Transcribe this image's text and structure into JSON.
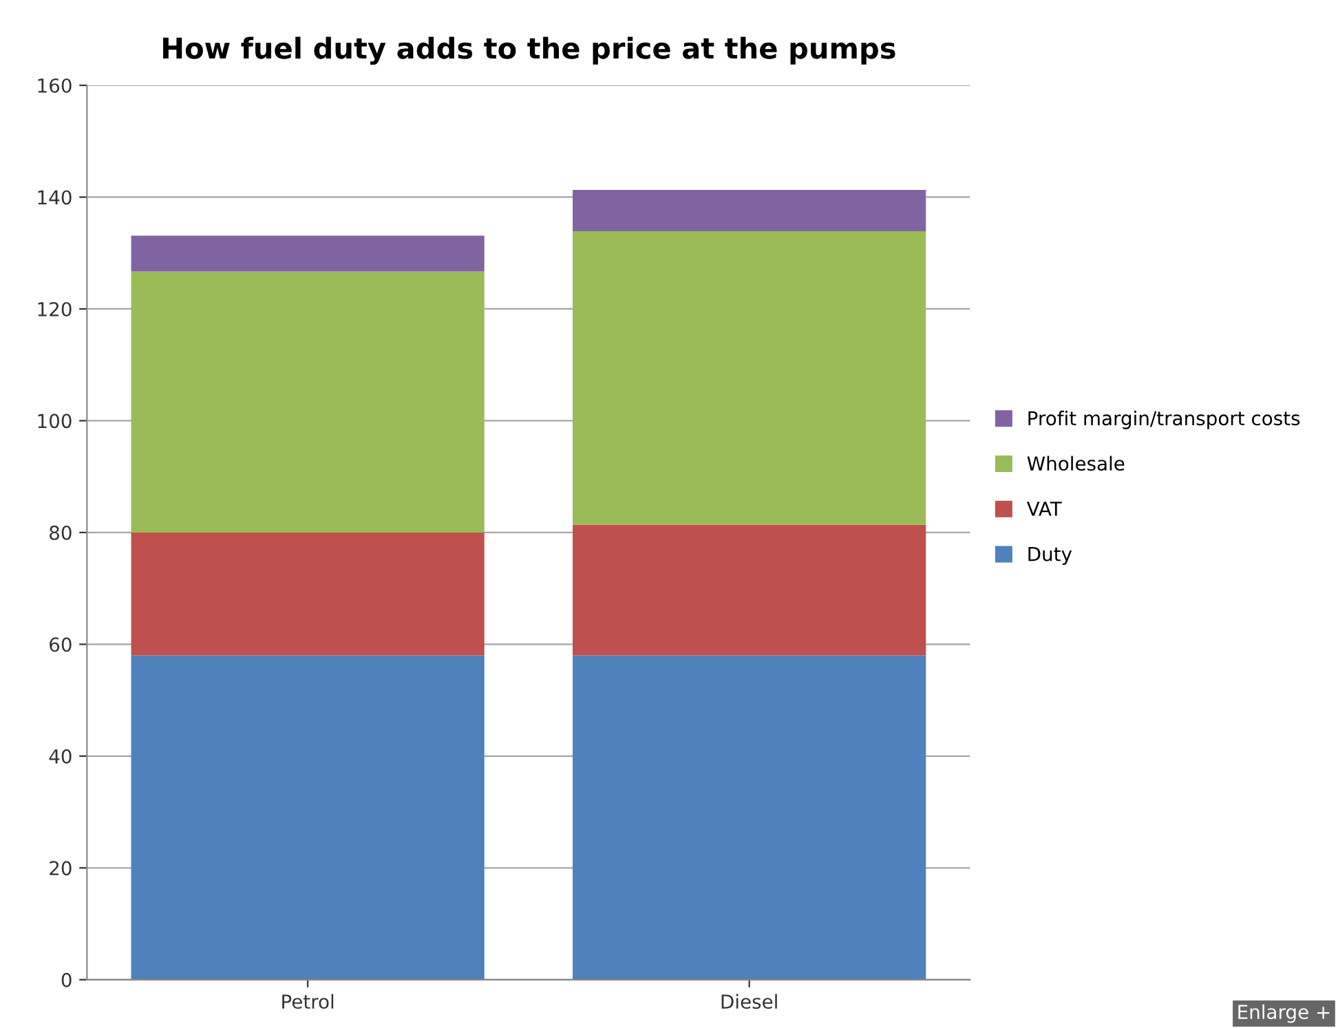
{
  "chart_data": {
    "type": "bar",
    "title": "How fuel duty adds to the price at the pumps",
    "categories": [
      "Petrol",
      "Diesel"
    ],
    "stacked": true,
    "series": [
      {
        "name": "Duty",
        "color": "#4f81bd",
        "values": [
          58,
          58
        ]
      },
      {
        "name": "VAT",
        "color": "#c0504d",
        "values": [
          22,
          23.4
        ]
      },
      {
        "name": "Wholesale",
        "color": "#9bbb59",
        "values": [
          46.7,
          52.5
        ]
      },
      {
        "name": "Profit margin/transport costs",
        "color": "#8064a2",
        "values": [
          6.4,
          7.4
        ]
      }
    ],
    "ylim": [
      0,
      160
    ],
    "yticks": [
      0,
      20,
      40,
      60,
      80,
      100,
      120,
      140,
      160
    ],
    "grid": "y",
    "legend": "right",
    "annotations": [
      "Enlarge +"
    ]
  }
}
